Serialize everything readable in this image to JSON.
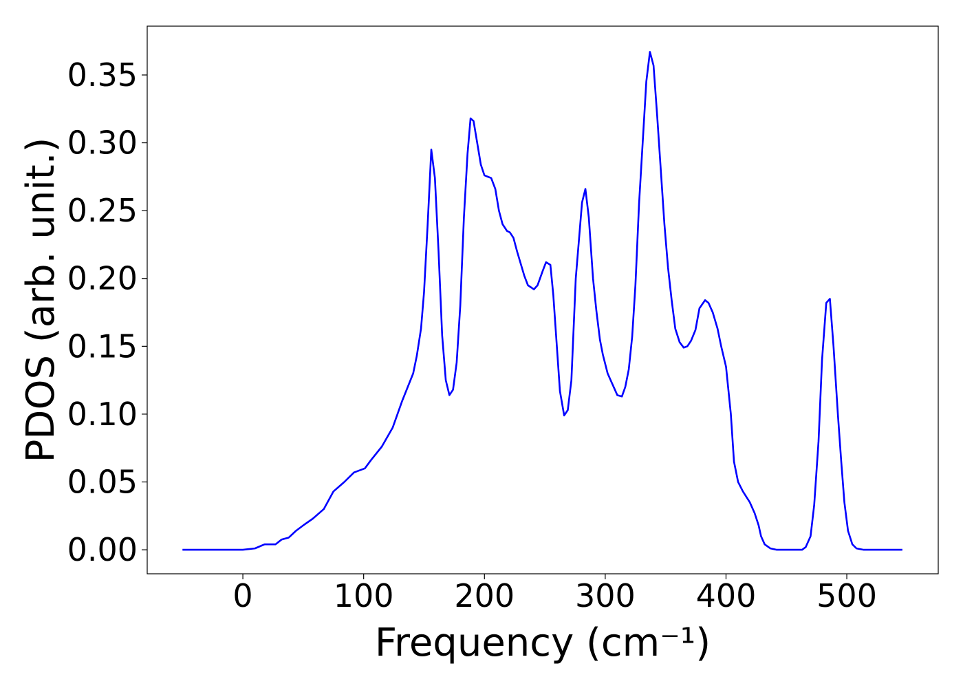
{
  "chart_data": {
    "type": "line",
    "xlabel": "Frequency (cm⁻¹)",
    "ylabel": "PDOS (arb. unit.)",
    "xlim": [
      -79.2,
      575.7
    ],
    "ylim": [
      -0.0177,
      0.386
    ],
    "xticks": [
      0,
      100,
      200,
      300,
      400,
      500
    ],
    "yticks": [
      {
        "value": 0,
        "label": "0.00"
      },
      {
        "value": 0.05,
        "label": "0.05"
      },
      {
        "value": 0.1,
        "label": "0.10"
      },
      {
        "value": 0.15,
        "label": "0.15"
      },
      {
        "value": 0.2,
        "label": "0.20"
      },
      {
        "value": 0.25,
        "label": "0.25"
      },
      {
        "value": 0.3,
        "label": "0.30"
      },
      {
        "value": 0.35,
        "label": "0.35"
      }
    ],
    "series": [
      {
        "color": "#0000ff",
        "x": [
          -50,
          0,
          10,
          18,
          27,
          32,
          38,
          44,
          50,
          58,
          67,
          75,
          84,
          92,
          101,
          106,
          115,
          124,
          132,
          141,
          144,
          147.5,
          150,
          153,
          156,
          159,
          162,
          165,
          168,
          171,
          174,
          177,
          180,
          183,
          186,
          188.5,
          191,
          194,
          197,
          200,
          205.6,
          209,
          212,
          215,
          218.7,
          221,
          224,
          227,
          233,
          236,
          241,
          244,
          248,
          251,
          254.6,
          257,
          262.5,
          266,
          269,
          272,
          275.6,
          280.8,
          283.6,
          286.4,
          289.9,
          292.7,
          295.6,
          298,
          302,
          307.5,
          310,
          313.8,
          316.6,
          319.5,
          322.3,
          325,
          328,
          331,
          334,
          337,
          340,
          343,
          346,
          349,
          352,
          355,
          358,
          361.6,
          365,
          368,
          371,
          374.7,
          378,
          382.7,
          385.5,
          389,
          393,
          396,
          400,
          404,
          406.6,
          410,
          414,
          419.7,
          423.7,
          427,
          429,
          432,
          436.8,
          442,
          463,
          466,
          470,
          473,
          476.6,
          479.5,
          483,
          486,
          489,
          492.6,
          495.4,
          498,
          501,
          504.6,
          508,
          514,
          546
        ],
        "values": [
          0,
          0,
          0.001,
          0.004,
          0.004,
          0.0075,
          0.009,
          0.014,
          0.018,
          0.023,
          0.03,
          0.043,
          0.05,
          0.057,
          0.06,
          0.066,
          0.076,
          0.09,
          0.11,
          0.13,
          0.143,
          0.163,
          0.19,
          0.24,
          0.295,
          0.274,
          0.22,
          0.158,
          0.125,
          0.114,
          0.118,
          0.138,
          0.18,
          0.245,
          0.292,
          0.318,
          0.316,
          0.3,
          0.284,
          0.276,
          0.274,
          0.266,
          0.25,
          0.24,
          0.235,
          0.234,
          0.23,
          0.22,
          0.202,
          0.195,
          0.192,
          0.195,
          0.205,
          0.212,
          0.21,
          0.188,
          0.117,
          0.099,
          0.103,
          0.125,
          0.2,
          0.256,
          0.266,
          0.245,
          0.2,
          0.176,
          0.155,
          0.144,
          0.13,
          0.119,
          0.114,
          0.113,
          0.12,
          0.133,
          0.157,
          0.195,
          0.255,
          0.3,
          0.345,
          0.367,
          0.357,
          0.32,
          0.28,
          0.24,
          0.208,
          0.184,
          0.163,
          0.153,
          0.149,
          0.15,
          0.154,
          0.162,
          0.178,
          0.184,
          0.182,
          0.175,
          0.163,
          0.15,
          0.135,
          0.1,
          0.065,
          0.05,
          0.043,
          0.035,
          0.027,
          0.018,
          0.01,
          0.004,
          0.001,
          0,
          0,
          0.002,
          0.01,
          0.033,
          0.08,
          0.14,
          0.182,
          0.185,
          0.15,
          0.1,
          0.065,
          0.035,
          0.014,
          0.004,
          0.001,
          0,
          0
        ]
      }
    ]
  }
}
